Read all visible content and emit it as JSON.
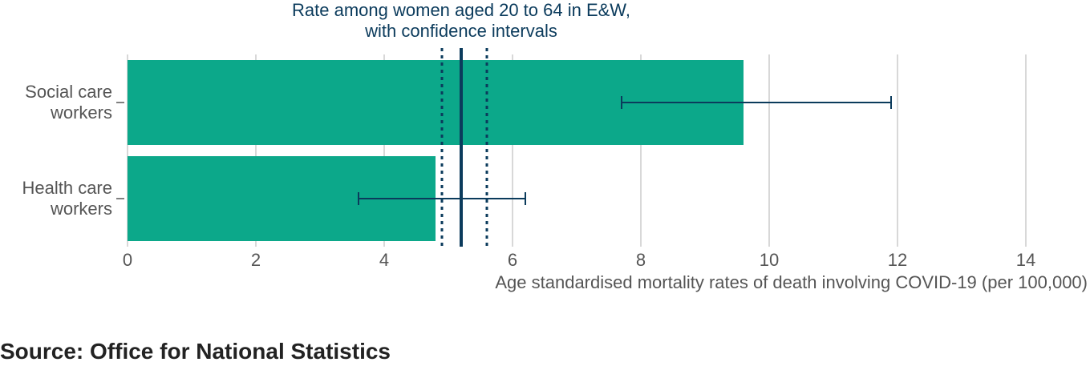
{
  "chart_data": {
    "type": "bar",
    "orientation": "horizontal",
    "categories": [
      [
        "Social care",
        "workers"
      ],
      [
        "Health care",
        "workers"
      ]
    ],
    "values": [
      9.6,
      4.8
    ],
    "ci_lower": [
      7.7,
      3.6
    ],
    "ci_upper": [
      11.9,
      6.2
    ],
    "xlim": [
      0,
      14
    ],
    "xticks": [
      0,
      2,
      4,
      6,
      8,
      10,
      12,
      14
    ],
    "xlabel": "Age standardised mortality rates of death involving COVID-19 (per 100,000)",
    "reference": {
      "label_lines": [
        "Rate among women aged 20 to 64 in E&W,",
        "with confidence intervals"
      ],
      "value": 5.2,
      "ci": [
        4.9,
        5.6
      ]
    },
    "grid": "vertical",
    "colors": {
      "bar": "#0ca88a",
      "reference": "#0b3b5c",
      "error_bar": "#0b3b5c",
      "grid": "#cccccc"
    }
  },
  "source": "Source: Office for National Statistics"
}
